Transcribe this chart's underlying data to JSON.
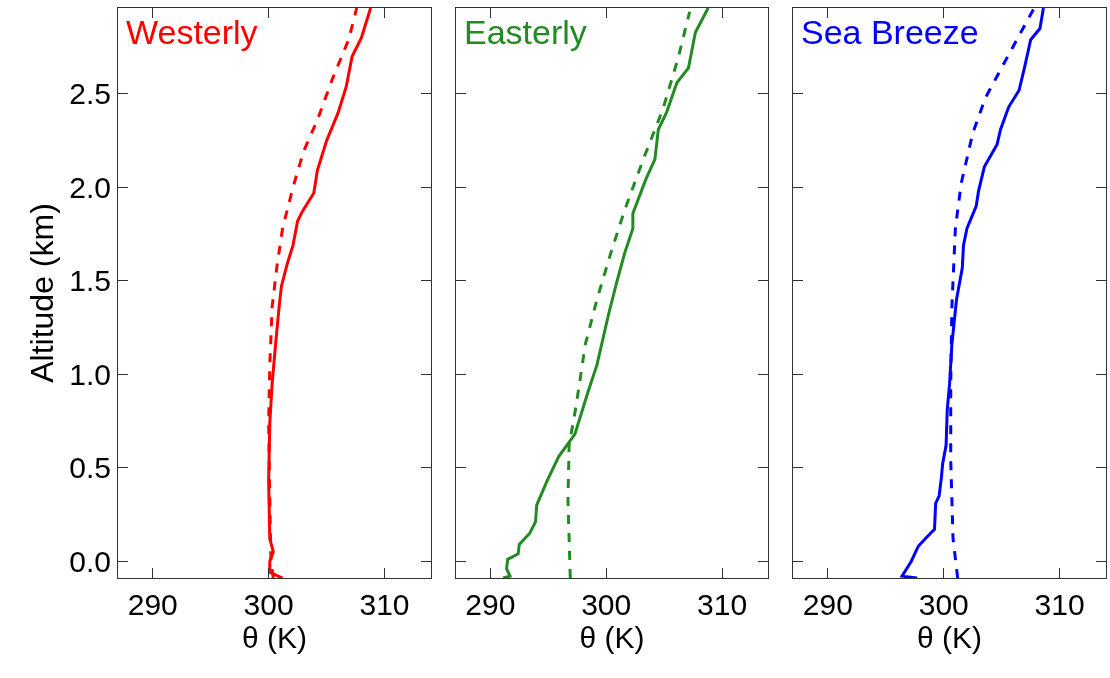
{
  "chart_data": [
    {
      "type": "line",
      "title": "Westerly",
      "xlabel": "θ (K)",
      "ylabel": "Altitude (km)",
      "xlim": [
        287,
        314
      ],
      "xticks": [
        290,
        300,
        310
      ],
      "ylim": [
        -0.09,
        2.96
      ],
      "yticks": [
        {
          "value": 0,
          "label": "0.0"
        },
        {
          "value": 0.5,
          "label": "0.5"
        },
        {
          "value": 1,
          "label": "1.0"
        },
        {
          "value": 1.5,
          "label": "1.5"
        },
        {
          "value": 2,
          "label": "2.0"
        },
        {
          "value": 2.5,
          "label": "2.5"
        }
      ],
      "series": [
        {
          "color": "#ff0000",
          "line_style": "solid",
          "x": [
            301.2,
            300.1,
            300.1,
            300.4,
            300.1,
            300.0,
            300.1,
            300.3,
            300.6,
            300.9,
            301.1,
            301.6,
            302.1,
            302.5,
            302.9,
            303.9,
            304.2,
            305.0,
            306.0,
            306.7,
            307.2,
            308.0,
            308.8
          ],
          "values": [
            -0.09,
            -0.06,
            0,
            0.05,
            0.12,
            0.43,
            0.74,
            0.95,
            1.16,
            1.36,
            1.47,
            1.59,
            1.69,
            1.82,
            1.87,
            1.97,
            2.09,
            2.25,
            2.4,
            2.54,
            2.7,
            2.8,
            2.96
          ]
        },
        {
          "color": "#ff0000",
          "line_style": "dashed",
          "x": [
            300.4,
            300.2,
            300.1,
            300.0,
            300.1,
            300.3,
            300.7,
            301.2,
            302.1,
            303.0,
            304.2,
            305.5,
            306.9,
            307.6
          ],
          "values": [
            -0.09,
            0,
            0.33,
            0.74,
            1.05,
            1.36,
            1.57,
            1.78,
            2.0,
            2.19,
            2.36,
            2.58,
            2.79,
            2.96
          ]
        }
      ]
    },
    {
      "type": "line",
      "title": "Easterly",
      "xlabel": "θ (K)",
      "xlim": [
        287,
        314
      ],
      "xticks": [
        290,
        300,
        310
      ],
      "ylim": [
        -0.09,
        2.96
      ],
      "yticks": [
        {
          "value": 0,
          "label": null
        },
        {
          "value": 0.5,
          "label": null
        },
        {
          "value": 1,
          "label": null
        },
        {
          "value": 1.5,
          "label": null
        },
        {
          "value": 2,
          "label": null
        },
        {
          "value": 2.5,
          "label": null
        }
      ],
      "tick_labels": "x",
      "series": [
        {
          "color": "#228b22",
          "line_style": "solid",
          "x": [
            291.1,
            291.7,
            291.4,
            291.5,
            292.4,
            292.5,
            293.4,
            293.9,
            294.0,
            294.9,
            295.9,
            296.6,
            297.3,
            298.4,
            299.2,
            300.2,
            300.9,
            301.6,
            302.3,
            302.3,
            303.4,
            304.2,
            304.5,
            305.2,
            306.1,
            307.1,
            307.7,
            308.8
          ],
          "values": [
            -0.09,
            -0.08,
            -0.04,
            0.01,
            0.04,
            0.09,
            0.15,
            0.21,
            0.3,
            0.43,
            0.56,
            0.62,
            0.68,
            0.9,
            1.05,
            1.32,
            1.49,
            1.65,
            1.78,
            1.86,
            2.04,
            2.15,
            2.31,
            2.4,
            2.56,
            2.64,
            2.83,
            2.96
          ]
        },
        {
          "color": "#228b22",
          "line_style": "dashed",
          "x": [
            296.9,
            296.8,
            296.7,
            296.8,
            297.4,
            298.2,
            299.2,
            300.4,
            301.6,
            303.2,
            304.9,
            306.2,
            307.2
          ],
          "values": [
            -0.09,
            0.12,
            0.33,
            0.62,
            0.83,
            1.16,
            1.4,
            1.65,
            1.88,
            2.15,
            2.42,
            2.69,
            2.94
          ]
        }
      ]
    },
    {
      "type": "line",
      "title": "Sea Breeze",
      "xlabel": "θ (K)",
      "xlim": [
        287,
        314
      ],
      "xticks": [
        290,
        300,
        310
      ],
      "ylim": [
        -0.09,
        2.96
      ],
      "yticks": [
        {
          "value": 0,
          "label": null
        },
        {
          "value": 0.5,
          "label": null
        },
        {
          "value": 1,
          "label": null
        },
        {
          "value": 1.5,
          "label": null
        },
        {
          "value": 2,
          "label": null
        },
        {
          "value": 2.5,
          "label": null
        }
      ],
      "tick_labels": "x",
      "series": [
        {
          "color": "#0000ff",
          "line_style": "solid",
          "x": [
            297.7,
            296.4,
            297.2,
            297.8,
            298.4,
            299.2,
            299.3,
            299.6,
            299.8,
            299.9,
            300.2,
            300.3,
            300.5,
            300.7,
            301.1,
            301.6,
            301.7,
            302.0,
            302.8,
            303.0,
            303.5,
            304.6,
            304.9,
            305.6,
            306.5,
            307.0,
            307.5,
            308.3,
            308.6
          ],
          "values": [
            -0.09,
            -0.08,
            0,
            0.08,
            0.12,
            0.17,
            0.31,
            0.35,
            0.45,
            0.52,
            0.62,
            0.81,
            0.95,
            1.16,
            1.4,
            1.57,
            1.69,
            1.78,
            1.9,
            1.98,
            2.11,
            2.23,
            2.31,
            2.43,
            2.52,
            2.65,
            2.79,
            2.85,
            2.96
          ]
        },
        {
          "color": "#0000ff",
          "line_style": "dashed",
          "x": [
            301.2,
            300.8,
            300.6,
            300.6,
            300.7,
            301.0,
            301.5,
            302.5,
            303.6,
            305.6,
            307.8
          ],
          "values": [
            -0.09,
            0.12,
            0.54,
            0.95,
            1.36,
            1.78,
            2.02,
            2.29,
            2.48,
            2.71,
            2.96
          ]
        }
      ]
    }
  ]
}
